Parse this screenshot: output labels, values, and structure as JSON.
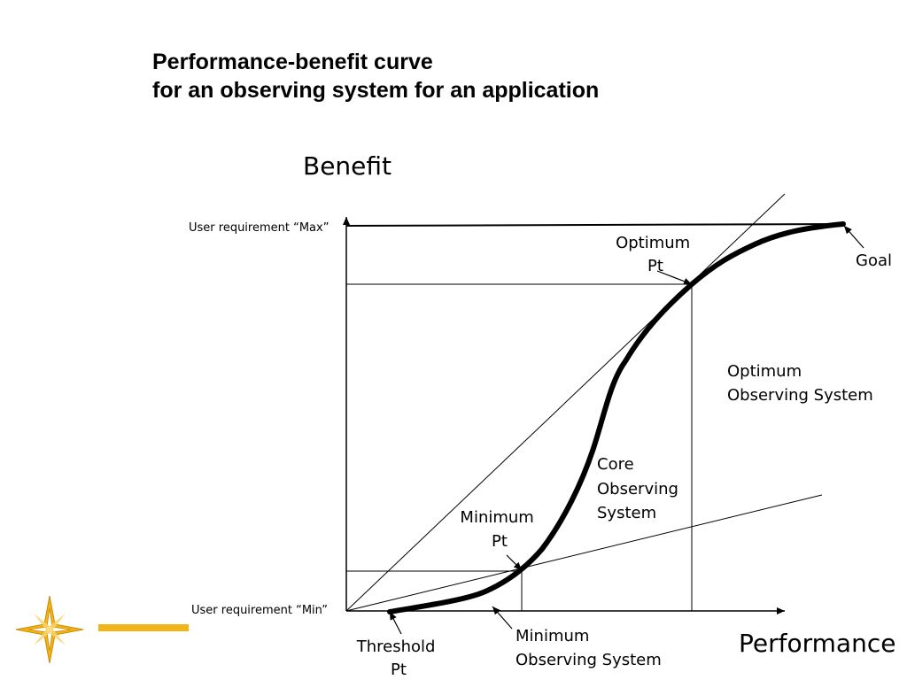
{
  "title": {
    "line1": "Performance-benefit curve",
    "line2": "for an observing system for an application"
  },
  "diagram": {
    "y_axis_label": "Benefit",
    "x_axis_label": "Performance",
    "user_req_max": "User requirement “Max”",
    "user_req_min": "User requirement “Min”",
    "optimum_pt": [
      "Optimum",
      "Pt"
    ],
    "goal": "Goal",
    "optimum_system": [
      "Optimum",
      "Observing System"
    ],
    "core_system": [
      "Core",
      "Observing",
      "System"
    ],
    "minimum_pt": [
      "Minimum",
      "Pt"
    ],
    "threshold_pt": [
      "Threshold",
      "Pt"
    ],
    "minimum_system": [
      "Minimum",
      "Observing System"
    ]
  },
  "colors": {
    "curve": "#000000",
    "logo_gold": "#f2b418"
  }
}
